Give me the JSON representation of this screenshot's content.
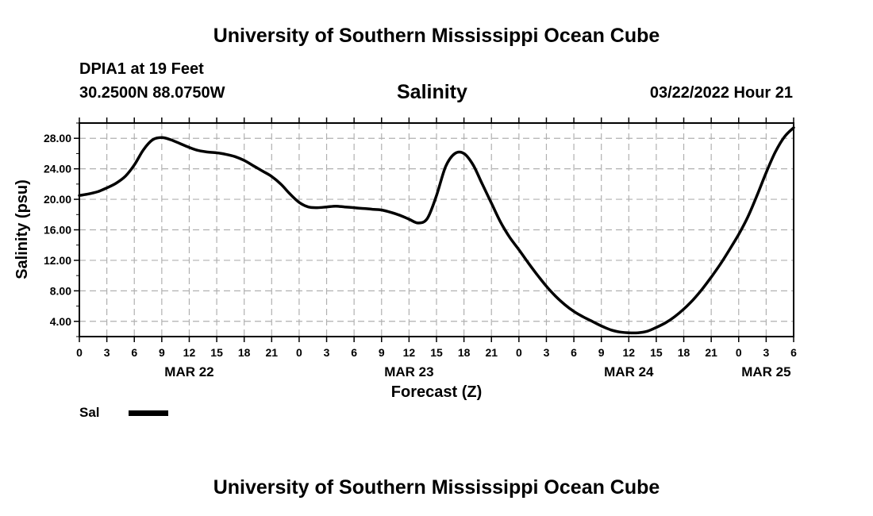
{
  "header": {
    "title": "University of Southern Mississippi Ocean Cube",
    "station": "DPIA1 at 19 Feet",
    "coordinates": "30.2500N  88.0750W",
    "datetime": "03/22/2022 Hour 21"
  },
  "footer": {
    "title": "University of Southern Mississippi Ocean Cube"
  },
  "chart_data": {
    "type": "line",
    "title": "Salinity",
    "xlabel": "Forecast (Z)",
    "ylabel": "Salinity (psu)",
    "x_unit": "hours from MAR 22 00Z",
    "xlim": [
      0,
      78
    ],
    "ylim": [
      2,
      30
    ],
    "y_ticks": [
      "4.00",
      "8.00",
      "12.00",
      "16.00",
      "20.00",
      "24.00",
      "28.00"
    ],
    "y_tick_values": [
      4,
      8,
      12,
      16,
      20,
      24,
      28
    ],
    "x_tick_hours": [
      0,
      3,
      6,
      9,
      12,
      15,
      18,
      21,
      24,
      27,
      30,
      33,
      36,
      39,
      42,
      45,
      48,
      51,
      54,
      57,
      60,
      63,
      66,
      69,
      72,
      75,
      78
    ],
    "x_tick_labels": [
      "0",
      "3",
      "6",
      "9",
      "12",
      "15",
      "18",
      "21",
      "0",
      "3",
      "6",
      "9",
      "12",
      "15",
      "18",
      "21",
      "0",
      "3",
      "6",
      "9",
      "12",
      "15",
      "18",
      "21",
      "0",
      "3",
      "6"
    ],
    "date_labels": [
      {
        "label": "MAR 22",
        "hour": 12
      },
      {
        "label": "MAR 23",
        "hour": 36
      },
      {
        "label": "MAR 24",
        "hour": 60
      },
      {
        "label": "MAR 25",
        "hour": 75
      }
    ],
    "grid": true,
    "legend_position": "bottom-left",
    "series": [
      {
        "name": "Sal",
        "color": "#000000",
        "x": [
          0,
          1,
          2,
          3,
          4,
          5,
          6,
          7,
          8,
          9,
          10,
          11,
          12,
          13,
          14,
          15,
          16,
          17,
          18,
          19,
          20,
          21,
          22,
          23,
          24,
          25,
          26,
          27,
          28,
          29,
          30,
          31,
          32,
          33,
          34,
          35,
          36,
          37,
          38,
          39,
          40,
          41,
          42,
          43,
          44,
          45,
          46,
          47,
          48,
          49,
          50,
          51,
          52,
          53,
          54,
          55,
          56,
          57,
          58,
          59,
          60,
          61,
          62,
          63,
          64,
          65,
          66,
          67,
          68,
          69,
          70,
          71,
          72,
          73,
          74,
          75,
          76,
          77,
          78
        ],
        "values": [
          20.5,
          20.7,
          21.0,
          21.5,
          22.1,
          23.0,
          24.5,
          26.5,
          27.8,
          28.1,
          27.8,
          27.3,
          26.8,
          26.4,
          26.2,
          26.1,
          25.9,
          25.6,
          25.1,
          24.4,
          23.7,
          23.0,
          22.0,
          20.7,
          19.6,
          19.0,
          18.9,
          19.0,
          19.1,
          19.0,
          18.9,
          18.8,
          18.7,
          18.6,
          18.3,
          17.9,
          17.4,
          16.9,
          17.5,
          20.5,
          24.3,
          26.0,
          26.0,
          24.5,
          22.0,
          19.5,
          17.0,
          15.0,
          13.4,
          11.7,
          10.1,
          8.6,
          7.3,
          6.2,
          5.3,
          4.6,
          4.0,
          3.4,
          2.9,
          2.6,
          2.5,
          2.5,
          2.7,
          3.2,
          3.8,
          4.6,
          5.6,
          6.8,
          8.2,
          9.8,
          11.5,
          13.4,
          15.4,
          17.7,
          20.5,
          23.5,
          26.2,
          28.2,
          29.4
        ]
      }
    ]
  }
}
